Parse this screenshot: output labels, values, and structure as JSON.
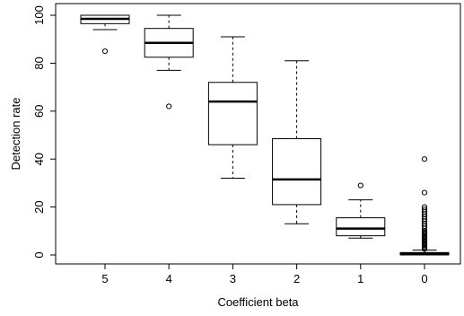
{
  "chart_data": {
    "type": "boxplot",
    "title": "",
    "xlabel": "Coefficient beta",
    "ylabel": "Detection rate",
    "ylim": [
      0,
      100
    ],
    "yticks": [
      0,
      20,
      40,
      60,
      80,
      100
    ],
    "grid": false,
    "legend": "none",
    "colors": {
      "line": "#000000",
      "box_fill": "#ffffff",
      "background": "#ffffff"
    },
    "categories": [
      "5",
      "4",
      "3",
      "2",
      "1",
      "0"
    ],
    "boxes": [
      {
        "category": "5",
        "whisker_low": 94,
        "q1": 96.5,
        "median": 98.5,
        "q3": 100,
        "whisker_high": 100,
        "outliers": [
          85
        ]
      },
      {
        "category": "4",
        "whisker_low": 77,
        "q1": 82.5,
        "median": 88.5,
        "q3": 94.5,
        "whisker_high": 100,
        "outliers": [
          62
        ]
      },
      {
        "category": "3",
        "whisker_low": 32,
        "q1": 46,
        "median": 64,
        "q3": 72,
        "whisker_high": 91,
        "outliers": []
      },
      {
        "category": "2",
        "whisker_low": 13,
        "q1": 21,
        "median": 31.5,
        "q3": 48.5,
        "whisker_high": 81,
        "outliers": []
      },
      {
        "category": "1",
        "whisker_low": 7,
        "q1": 8,
        "median": 11,
        "q3": 15.5,
        "whisker_high": 23,
        "outliers": [
          29
        ]
      },
      {
        "category": "0",
        "whisker_low": 0,
        "q1": 0,
        "median": 0.5,
        "q3": 1,
        "whisker_high": 2,
        "outliers": [
          2.5,
          3,
          3.5,
          4,
          4.5,
          5,
          5.5,
          6,
          6.5,
          7,
          7.5,
          8,
          8.5,
          9,
          9.5,
          10,
          11,
          12,
          13,
          14,
          15,
          16,
          17,
          18,
          19,
          20,
          26,
          40
        ]
      }
    ]
  }
}
